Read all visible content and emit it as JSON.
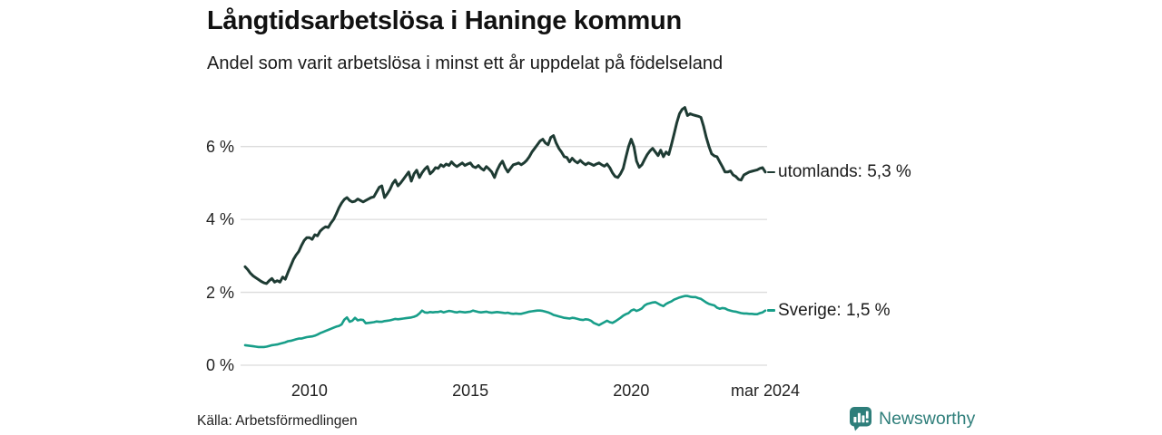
{
  "header": {
    "title": "Långtidsarbetslösa i Haninge kommun",
    "subtitle": "Andel som varit arbetslösa i minst ett år uppdelat på födelseland"
  },
  "footer": {
    "source": "Källa: Arbetsförmedlingen",
    "brand": "Newsworthy"
  },
  "colors": {
    "utomlands_line": "#1e3b33",
    "sverige_line": "#189e89",
    "grid": "#dcdcdc",
    "text": "#1a1a1a",
    "brand_teal": "#2e7e7a"
  },
  "chart_data": {
    "type": "line",
    "title": "Långtidsarbetslösa i Haninge kommun",
    "subtitle": "Andel som varit arbetslösa i minst ett år uppdelat på födelseland",
    "x_start": "2008-01",
    "x_end": "2024-03",
    "x_unit": "month",
    "ylim": [
      0,
      7.3
    ],
    "grid": true,
    "legend_position": "end-of-line-labels",
    "y_ticks": [
      {
        "label": "6 %",
        "value": 6
      },
      {
        "label": "4 %",
        "value": 4
      },
      {
        "label": "2 %",
        "value": 2
      },
      {
        "label": "0 %",
        "value": 0
      }
    ],
    "x_ticks": [
      {
        "label": "2010",
        "month": 24
      },
      {
        "label": "2015",
        "month": 84
      },
      {
        "label": "2020",
        "month": 144
      },
      {
        "label": "mar 2024",
        "month": 194
      }
    ],
    "series": [
      {
        "name": "utomlands",
        "label": "utomlands: 5,3 %",
        "end_value_label": "5,3 %",
        "color": "#1e3b33",
        "stroke_width": 3,
        "values": [
          2.7,
          2.62,
          2.52,
          2.45,
          2.4,
          2.35,
          2.3,
          2.26,
          2.24,
          2.32,
          2.38,
          2.28,
          2.32,
          2.28,
          2.42,
          2.36,
          2.55,
          2.72,
          2.9,
          3.02,
          3.12,
          3.28,
          3.42,
          3.5,
          3.5,
          3.45,
          3.58,
          3.55,
          3.68,
          3.75,
          3.8,
          3.78,
          3.9,
          4.0,
          4.15,
          4.32,
          4.45,
          4.55,
          4.6,
          4.52,
          4.48,
          4.5,
          4.56,
          4.52,
          4.48,
          4.52,
          4.56,
          4.6,
          4.62,
          4.75,
          4.88,
          4.92,
          4.6,
          4.7,
          4.82,
          4.98,
          5.08,
          4.92,
          5.0,
          5.1,
          5.2,
          5.3,
          5.05,
          5.25,
          5.35,
          5.15,
          5.28,
          5.38,
          5.45,
          5.25,
          5.32,
          5.42,
          5.4,
          5.5,
          5.45,
          5.52,
          5.48,
          5.58,
          5.5,
          5.45,
          5.5,
          5.55,
          5.48,
          5.52,
          5.55,
          5.45,
          5.42,
          5.48,
          5.4,
          5.35,
          5.45,
          5.38,
          5.3,
          5.15,
          5.35,
          5.5,
          5.6,
          5.42,
          5.3,
          5.4,
          5.5,
          5.52,
          5.55,
          5.5,
          5.55,
          5.62,
          5.72,
          5.85,
          5.95,
          6.05,
          6.15,
          6.2,
          6.1,
          6.05,
          6.25,
          6.3,
          6.1,
          5.95,
          5.85,
          5.72,
          5.7,
          5.58,
          5.68,
          5.6,
          5.55,
          5.62,
          5.55,
          5.5,
          5.55,
          5.52,
          5.48,
          5.52,
          5.55,
          5.5,
          5.46,
          5.52,
          5.42,
          5.28,
          5.18,
          5.15,
          5.25,
          5.4,
          5.7,
          6.0,
          6.2,
          6.0,
          5.6,
          5.43,
          5.5,
          5.65,
          5.78,
          5.88,
          5.95,
          5.85,
          5.75,
          5.9,
          5.72,
          5.85,
          5.78,
          6.05,
          6.35,
          6.65,
          6.9,
          7.02,
          7.07,
          6.85,
          6.9,
          6.87,
          6.85,
          6.83,
          6.8,
          6.55,
          6.25,
          6.0,
          5.8,
          5.74,
          5.72,
          5.58,
          5.45,
          5.3,
          5.3,
          5.33,
          5.22,
          5.18,
          5.1,
          5.08,
          5.22,
          5.26,
          5.3,
          5.32,
          5.34,
          5.36,
          5.4,
          5.42,
          5.3
        ]
      },
      {
        "name": "Sverige",
        "label": "Sverige: 1,5 %",
        "end_value_label": "1,5 %",
        "color": "#189e89",
        "stroke_width": 2.6,
        "values": [
          0.55,
          0.54,
          0.53,
          0.52,
          0.51,
          0.5,
          0.5,
          0.5,
          0.51,
          0.53,
          0.55,
          0.56,
          0.57,
          0.59,
          0.61,
          0.63,
          0.66,
          0.67,
          0.69,
          0.71,
          0.73,
          0.73,
          0.75,
          0.77,
          0.78,
          0.79,
          0.81,
          0.84,
          0.88,
          0.91,
          0.94,
          0.97,
          1.0,
          1.03,
          1.06,
          1.08,
          1.12,
          1.25,
          1.31,
          1.19,
          1.22,
          1.3,
          1.23,
          1.25,
          1.24,
          1.15,
          1.16,
          1.17,
          1.18,
          1.2,
          1.19,
          1.19,
          1.21,
          1.22,
          1.23,
          1.25,
          1.27,
          1.26,
          1.27,
          1.28,
          1.29,
          1.3,
          1.31,
          1.33,
          1.36,
          1.42,
          1.5,
          1.45,
          1.44,
          1.46,
          1.45,
          1.46,
          1.46,
          1.48,
          1.45,
          1.47,
          1.49,
          1.48,
          1.46,
          1.45,
          1.47,
          1.46,
          1.45,
          1.46,
          1.47,
          1.5,
          1.48,
          1.46,
          1.45,
          1.46,
          1.47,
          1.45,
          1.44,
          1.45,
          1.46,
          1.45,
          1.44,
          1.43,
          1.44,
          1.42,
          1.41,
          1.42,
          1.41,
          1.41,
          1.43,
          1.45,
          1.47,
          1.48,
          1.49,
          1.5,
          1.5,
          1.49,
          1.47,
          1.45,
          1.42,
          1.38,
          1.36,
          1.34,
          1.32,
          1.3,
          1.29,
          1.28,
          1.3,
          1.29,
          1.27,
          1.25,
          1.24,
          1.26,
          1.25,
          1.22,
          1.16,
          1.13,
          1.1,
          1.14,
          1.18,
          1.22,
          1.18,
          1.16,
          1.2,
          1.25,
          1.3,
          1.36,
          1.4,
          1.43,
          1.5,
          1.53,
          1.49,
          1.52,
          1.56,
          1.64,
          1.68,
          1.7,
          1.72,
          1.73,
          1.69,
          1.65,
          1.62,
          1.68,
          1.72,
          1.75,
          1.8,
          1.83,
          1.86,
          1.88,
          1.9,
          1.9,
          1.88,
          1.87,
          1.87,
          1.84,
          1.82,
          1.77,
          1.72,
          1.68,
          1.66,
          1.64,
          1.58,
          1.55,
          1.57,
          1.56,
          1.52,
          1.5,
          1.48,
          1.47,
          1.45,
          1.43,
          1.42,
          1.42,
          1.41,
          1.41,
          1.4,
          1.4,
          1.43,
          1.45,
          1.5
        ]
      }
    ]
  }
}
